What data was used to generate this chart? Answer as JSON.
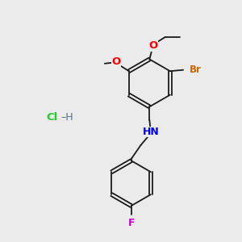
{
  "background_color": "#ebebeb",
  "bond_color": "#1a1a1a",
  "atom_colors": {
    "O": "#ff0000",
    "N": "#0000ee",
    "Br": "#cc6600",
    "F": "#cc00cc",
    "Cl": "#22cc22",
    "H_salt": "#507090",
    "C": "#1a1a1a"
  },
  "bond_lw": 1.3,
  "font_size": 8.5
}
